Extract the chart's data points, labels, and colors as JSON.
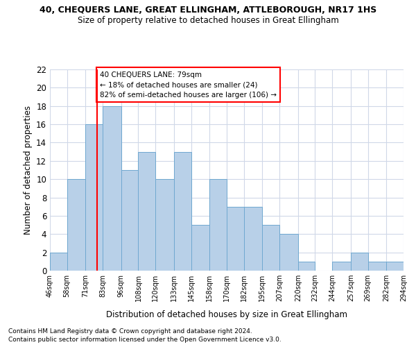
{
  "title": "40, CHEQUERS LANE, GREAT ELLINGHAM, ATTLEBOROUGH, NR17 1HS",
  "subtitle": "Size of property relative to detached houses in Great Ellingham",
  "xlabel": "Distribution of detached houses by size in Great Ellingham",
  "ylabel": "Number of detached properties",
  "bar_color": "#B8D0E8",
  "bar_edge_color": "#6FA8D0",
  "grid_color": "#D0D8E8",
  "annotation_text": "40 CHEQUERS LANE: 79sqm\n← 18% of detached houses are smaller (24)\n82% of semi-detached houses are larger (106) →",
  "annotation_box_color": "white",
  "annotation_border_color": "red",
  "vline_x": 79,
  "vline_color": "red",
  "bin_edges": [
    46,
    58,
    71,
    83,
    96,
    108,
    120,
    133,
    145,
    158,
    170,
    182,
    195,
    207,
    220,
    232,
    244,
    257,
    269,
    282,
    294
  ],
  "bin_labels": [
    "46sqm",
    "58sqm",
    "71sqm",
    "83sqm",
    "96sqm",
    "108sqm",
    "120sqm",
    "133sqm",
    "145sqm",
    "158sqm",
    "170sqm",
    "182sqm",
    "195sqm",
    "207sqm",
    "220sqm",
    "232sqm",
    "244sqm",
    "257sqm",
    "269sqm",
    "282sqm",
    "294sqm"
  ],
  "bar_heights": [
    2,
    10,
    16,
    18,
    11,
    13,
    10,
    13,
    5,
    10,
    7,
    7,
    5,
    4,
    1,
    0,
    1,
    2,
    1,
    1
  ],
  "ylim": [
    0,
    22
  ],
  "yticks": [
    0,
    2,
    4,
    6,
    8,
    10,
    12,
    14,
    16,
    18,
    20,
    22
  ],
  "footer1": "Contains HM Land Registry data © Crown copyright and database right 2024.",
  "footer2": "Contains public sector information licensed under the Open Government Licence v3.0."
}
